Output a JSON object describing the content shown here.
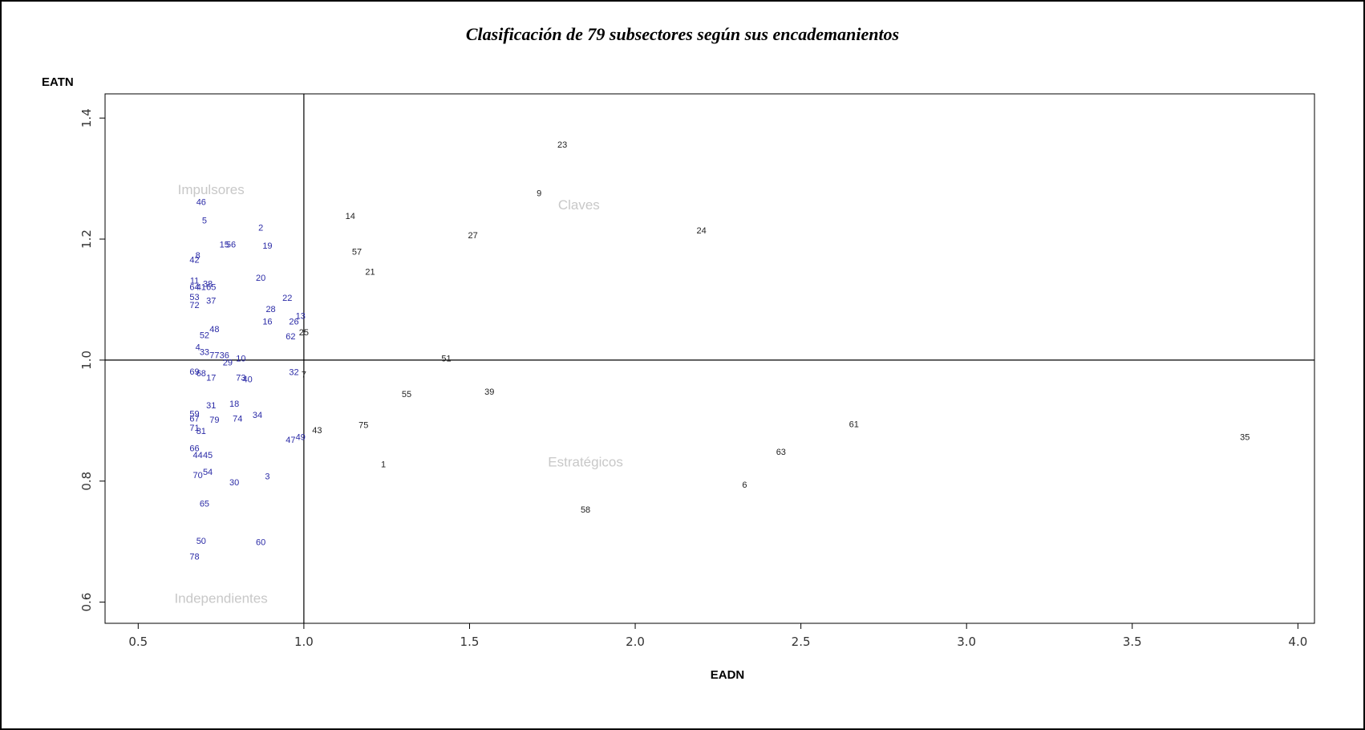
{
  "chart_data": {
    "type": "scatter",
    "title": "Clasificación de 79 subsectores según sus encademanientos",
    "xlabel": "EADN",
    "ylabel": "EATN",
    "xlim": [
      0.4,
      4.05
    ],
    "ylim": [
      0.565,
      1.44
    ],
    "xticks": [
      0.5,
      1.0,
      1.5,
      2.0,
      2.5,
      3.0,
      3.5,
      4.0
    ],
    "xtick_labels": [
      "0.5",
      "1.0",
      "1.5",
      "2.0",
      "2.5",
      "3.0",
      "3.5",
      "4.0"
    ],
    "yticks": [
      0.6,
      0.8,
      1.0,
      1.2,
      1.4
    ],
    "ytick_labels": [
      "0.6",
      "0.8",
      "1.0",
      "1.2",
      "1.4"
    ],
    "reference_lines": {
      "x": 1.0,
      "y": 1.0
    },
    "grid": false,
    "colors": {
      "below_threshold": "#2a2aa6",
      "above_threshold": "#222222",
      "region_label": "#c8c8c8",
      "axis": "#000000"
    },
    "regions": [
      {
        "label": "Impulsores",
        "x": 0.72,
        "y": 1.28
      },
      {
        "label": "Claves",
        "x": 1.83,
        "y": 1.255
      },
      {
        "label": "Estratégicos",
        "x": 1.85,
        "y": 0.83
      },
      {
        "label": "Independientes",
        "x": 0.75,
        "y": 0.605
      }
    ],
    "points": [
      {
        "label": "23",
        "x": 1.78,
        "y": 1.355
      },
      {
        "label": "9",
        "x": 1.71,
        "y": 1.275
      },
      {
        "label": "14",
        "x": 1.14,
        "y": 1.237
      },
      {
        "label": "27",
        "x": 1.51,
        "y": 1.205
      },
      {
        "label": "24",
        "x": 2.2,
        "y": 1.213
      },
      {
        "label": "57",
        "x": 1.16,
        "y": 1.178
      },
      {
        "label": "21",
        "x": 1.2,
        "y": 1.145
      },
      {
        "label": "51",
        "x": 1.43,
        "y": 1.002
      },
      {
        "label": "55",
        "x": 1.31,
        "y": 0.943
      },
      {
        "label": "39",
        "x": 1.56,
        "y": 0.947
      },
      {
        "label": "75",
        "x": 1.18,
        "y": 0.892
      },
      {
        "label": "43",
        "x": 1.04,
        "y": 0.883
      },
      {
        "label": "1",
        "x": 1.24,
        "y": 0.827
      },
      {
        "label": "61",
        "x": 2.66,
        "y": 0.893
      },
      {
        "label": "35",
        "x": 3.84,
        "y": 0.872
      },
      {
        "label": "63",
        "x": 2.44,
        "y": 0.847
      },
      {
        "label": "6",
        "x": 2.33,
        "y": 0.793
      },
      {
        "label": "58",
        "x": 1.85,
        "y": 0.752
      },
      {
        "label": "7",
        "x": 1.0,
        "y": 0.975
      },
      {
        "label": "46",
        "x": 0.69,
        "y": 1.26
      },
      {
        "label": "5",
        "x": 0.7,
        "y": 1.23
      },
      {
        "label": "2",
        "x": 0.87,
        "y": 1.218
      },
      {
        "label": "15",
        "x": 0.76,
        "y": 1.19
      },
      {
        "label": "56",
        "x": 0.78,
        "y": 1.19
      },
      {
        "label": "19",
        "x": 0.89,
        "y": 1.188
      },
      {
        "label": "8",
        "x": 0.68,
        "y": 1.172
      },
      {
        "label": "42",
        "x": 0.67,
        "y": 1.165
      },
      {
        "label": "20",
        "x": 0.87,
        "y": 1.135
      },
      {
        "label": "11",
        "x": 0.67,
        "y": 1.13
      },
      {
        "label": "38",
        "x": 0.71,
        "y": 1.125
      },
      {
        "label": "64",
        "x": 0.67,
        "y": 1.12
      },
      {
        "label": "41",
        "x": 0.69,
        "y": 1.12
      },
      {
        "label": "65",
        "x": 0.72,
        "y": 1.12
      },
      {
        "label": "22",
        "x": 0.95,
        "y": 1.102
      },
      {
        "label": "53",
        "x": 0.67,
        "y": 1.103
      },
      {
        "label": "37",
        "x": 0.72,
        "y": 1.097
      },
      {
        "label": "72",
        "x": 0.67,
        "y": 1.09
      },
      {
        "label": "28",
        "x": 0.9,
        "y": 1.083
      },
      {
        "label": "13",
        "x": 0.99,
        "y": 1.072
      },
      {
        "label": "26",
        "x": 0.97,
        "y": 1.063
      },
      {
        "label": "16",
        "x": 0.89,
        "y": 1.063
      },
      {
        "label": "25",
        "x": 1.0,
        "y": 1.045
      },
      {
        "label": "62",
        "x": 0.96,
        "y": 1.038
      },
      {
        "label": "48",
        "x": 0.73,
        "y": 1.05
      },
      {
        "label": "52",
        "x": 0.7,
        "y": 1.04
      },
      {
        "label": "4",
        "x": 0.68,
        "y": 1.02
      },
      {
        "label": "33",
        "x": 0.7,
        "y": 1.012
      },
      {
        "label": "77",
        "x": 0.73,
        "y": 1.007
      },
      {
        "label": "36",
        "x": 0.76,
        "y": 1.007
      },
      {
        "label": "10",
        "x": 0.81,
        "y": 1.002
      },
      {
        "label": "29",
        "x": 0.77,
        "y": 0.995
      },
      {
        "label": "69",
        "x": 0.67,
        "y": 0.98
      },
      {
        "label": "68",
        "x": 0.69,
        "y": 0.977
      },
      {
        "label": "17",
        "x": 0.72,
        "y": 0.97
      },
      {
        "label": "73",
        "x": 0.81,
        "y": 0.97
      },
      {
        "label": "40",
        "x": 0.83,
        "y": 0.967
      },
      {
        "label": "32",
        "x": 0.97,
        "y": 0.979
      },
      {
        "label": "31",
        "x": 0.72,
        "y": 0.924
      },
      {
        "label": "18",
        "x": 0.79,
        "y": 0.927
      },
      {
        "label": "34",
        "x": 0.86,
        "y": 0.908
      },
      {
        "label": "59",
        "x": 0.67,
        "y": 0.91
      },
      {
        "label": "67",
        "x": 0.67,
        "y": 0.902
      },
      {
        "label": "79",
        "x": 0.73,
        "y": 0.9
      },
      {
        "label": "74",
        "x": 0.8,
        "y": 0.902
      },
      {
        "label": "71",
        "x": 0.67,
        "y": 0.887
      },
      {
        "label": "81",
        "x": 0.69,
        "y": 0.882
      },
      {
        "label": "47",
        "x": 0.96,
        "y": 0.867
      },
      {
        "label": "49",
        "x": 0.99,
        "y": 0.872
      },
      {
        "label": "66",
        "x": 0.67,
        "y": 0.853
      },
      {
        "label": "44",
        "x": 0.68,
        "y": 0.842
      },
      {
        "label": "45",
        "x": 0.71,
        "y": 0.842
      },
      {
        "label": "54",
        "x": 0.71,
        "y": 0.814
      },
      {
        "label": "70",
        "x": 0.68,
        "y": 0.809
      },
      {
        "label": "30",
        "x": 0.79,
        "y": 0.797
      },
      {
        "label": "3",
        "x": 0.89,
        "y": 0.807
      },
      {
        "label": "65",
        "x": 0.7,
        "y": 0.762
      },
      {
        "label": "50",
        "x": 0.69,
        "y": 0.7
      },
      {
        "label": "60",
        "x": 0.87,
        "y": 0.698
      },
      {
        "label": "78",
        "x": 0.67,
        "y": 0.674
      }
    ]
  }
}
